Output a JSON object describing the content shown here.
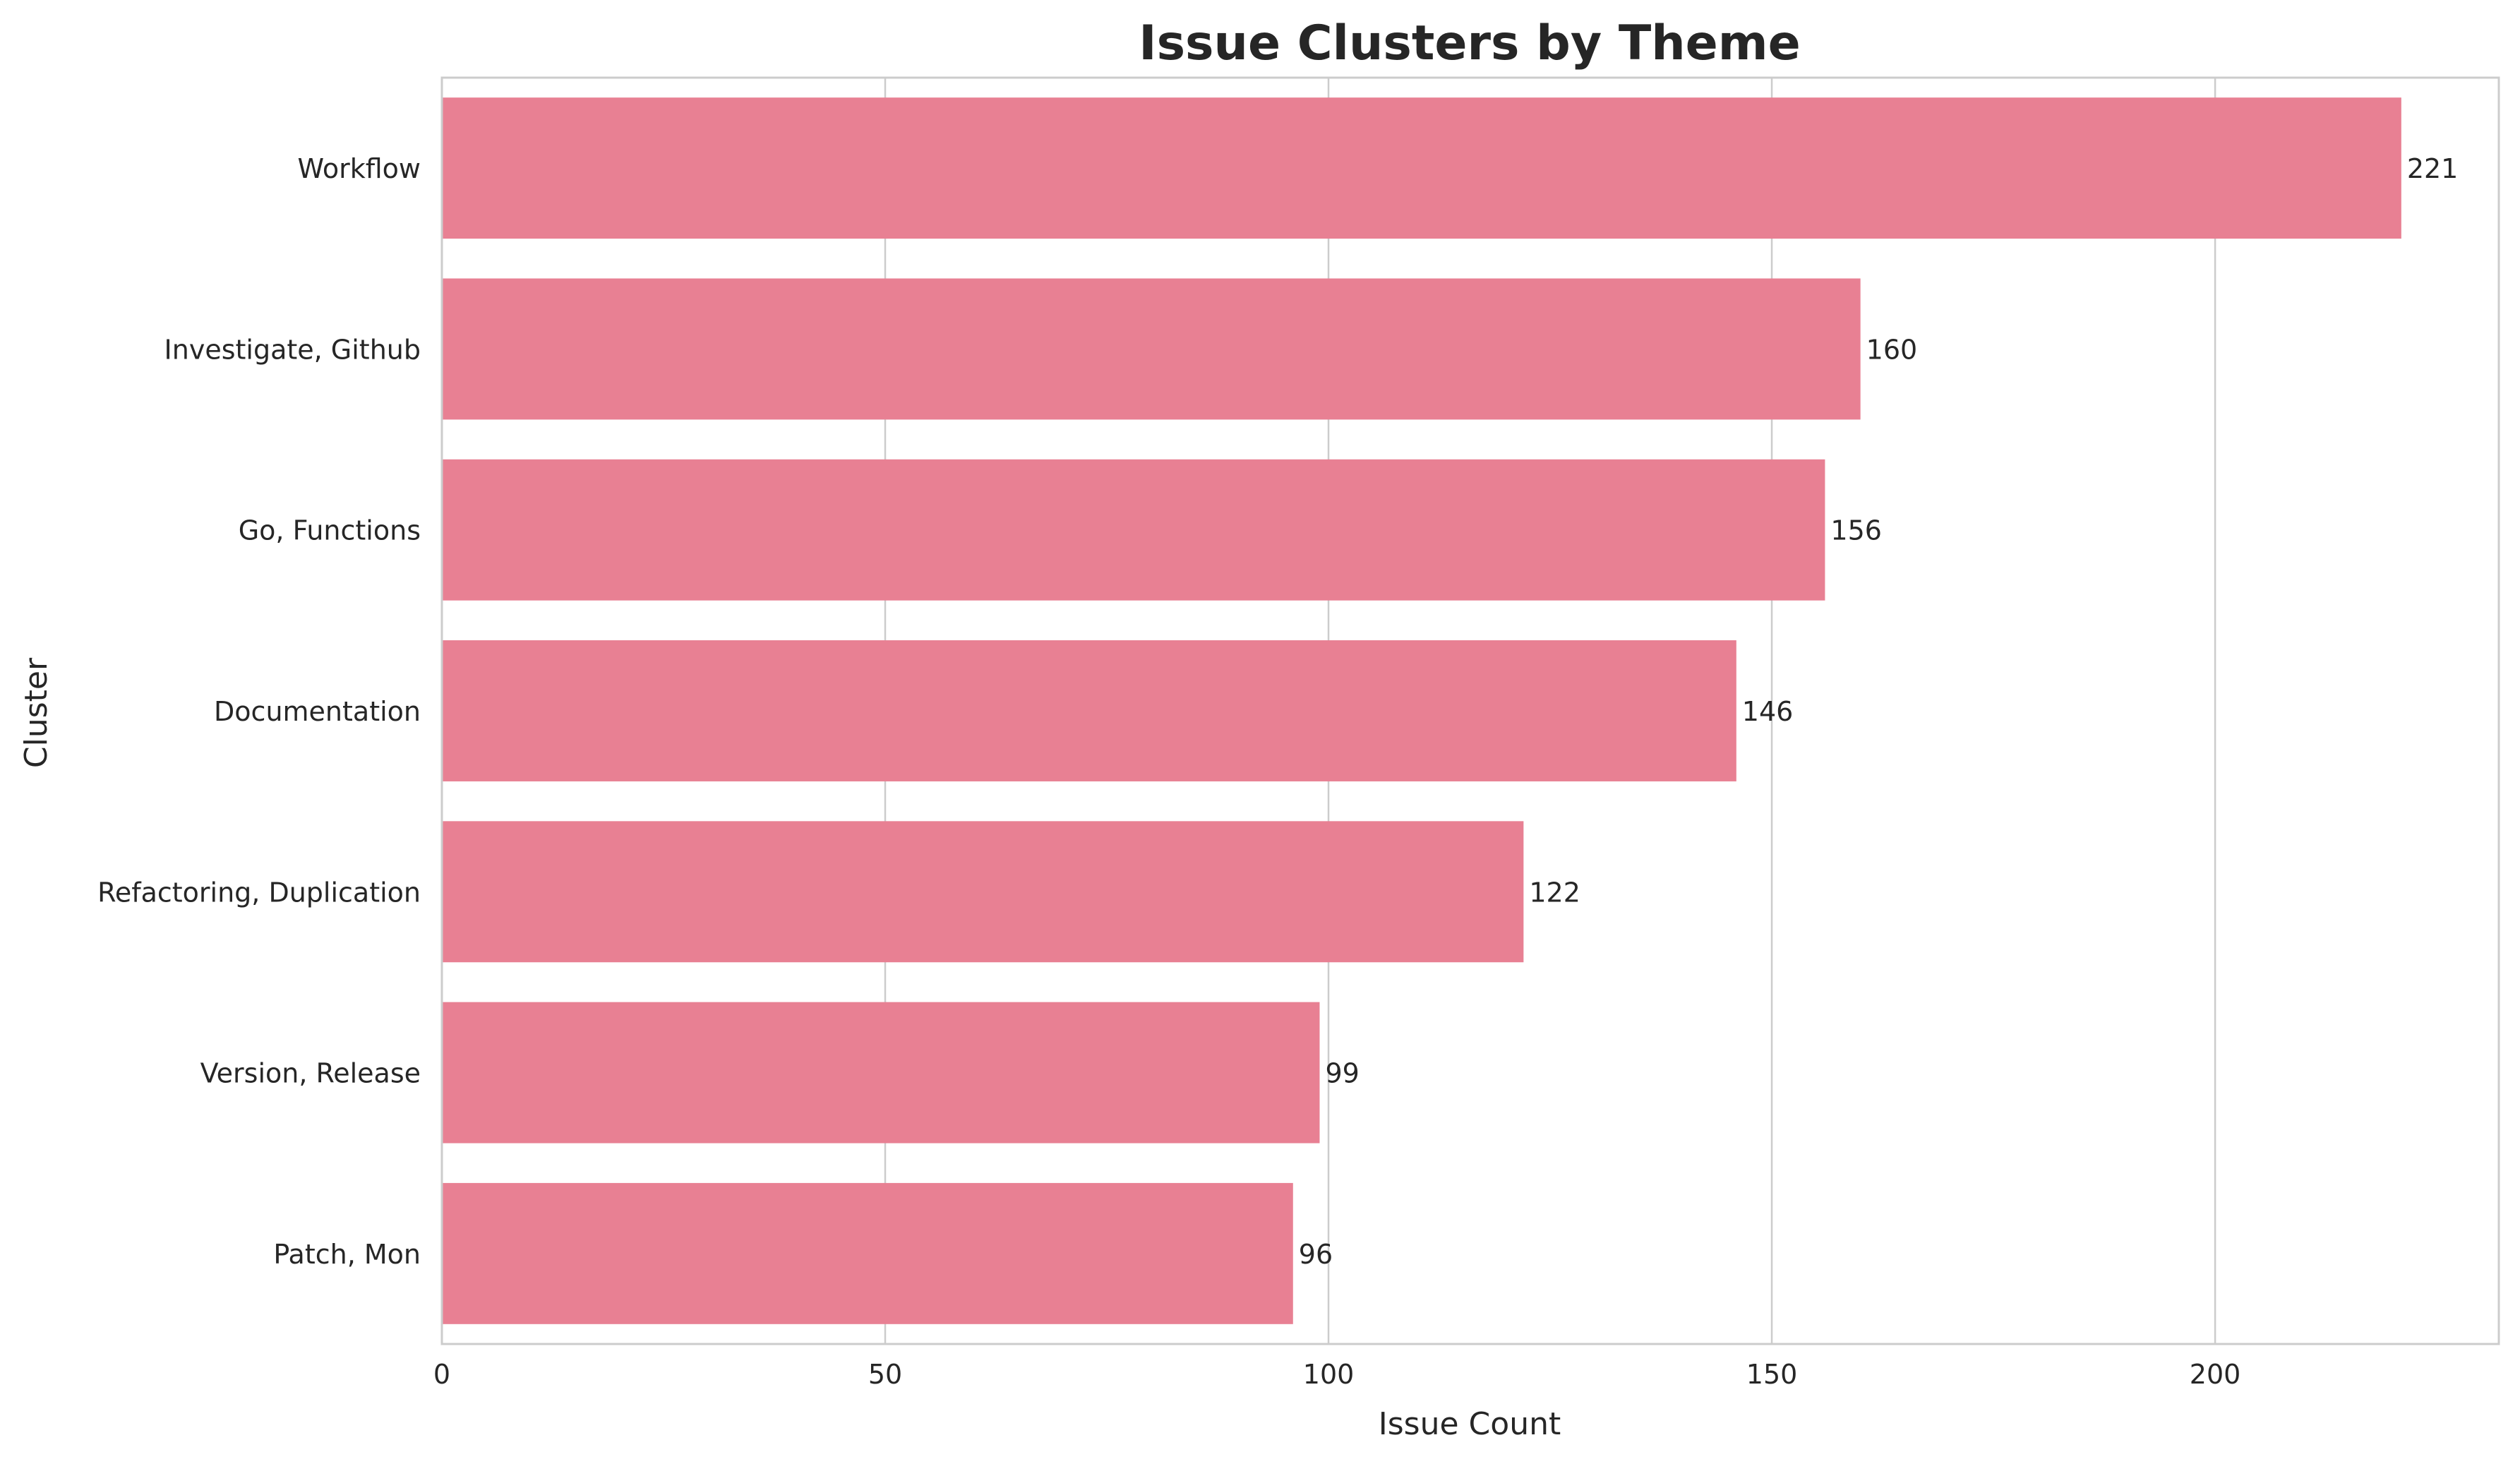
{
  "chart_data": {
    "type": "bar",
    "orientation": "horizontal",
    "title": "Issue Clusters by Theme",
    "xlabel": "Issue Count",
    "ylabel": "Cluster",
    "categories": [
      "Workflow",
      "Investigate, Github",
      "Go, Functions",
      "Documentation",
      "Refactoring, Duplication",
      "Version, Release",
      "Patch, Mon"
    ],
    "values": [
      221,
      160,
      156,
      146,
      122,
      99,
      96
    ],
    "data_labels": [
      "221",
      "160",
      "156",
      "146",
      "122",
      "99",
      "96"
    ],
    "xlim": [
      0,
      232
    ],
    "xticks": [
      0,
      50,
      100,
      150,
      200
    ],
    "xtick_labels": [
      "0",
      "50",
      "100",
      "150",
      "200"
    ],
    "grid": "vertical",
    "legend": "none",
    "bar_color": "#e88093",
    "grid_color": "#cccccc",
    "axis_color": "#cccccc",
    "text_color": "#262626"
  }
}
